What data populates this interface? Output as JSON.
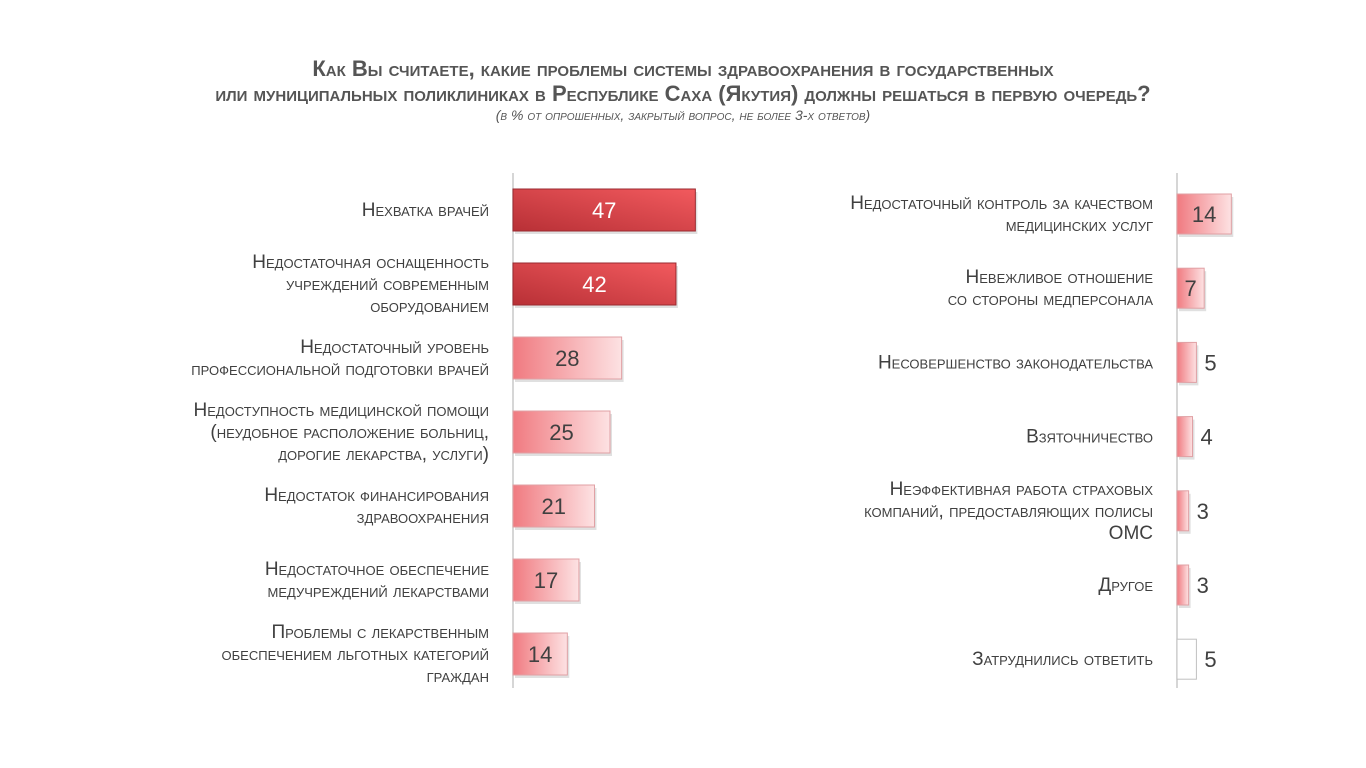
{
  "title": {
    "line1": "Как Вы считаете, какие проблемы системы здравоохранения в государственных",
    "line2": "или муниципальных поликлиниках в Республике Саха (Якутия) должны решаться в первую очередь?",
    "subtitle": "(в % от опрошенных, закрытый вопрос, не более 3-х ответов)"
  },
  "colors": {
    "top_bar_dark": "#b83036",
    "top_bar_light": "#f25a5e",
    "bar_dark": "#f07a80",
    "bar_light": "#fde2e3",
    "empty_bar": "#ffffff",
    "axis": "#c8c8c8",
    "text": "#404040"
  },
  "chart_data": [
    {
      "type": "bar",
      "orientation": "horizontal",
      "categories": [
        [
          "Нехватка врачей"
        ],
        [
          "Недостаточная оснащенность",
          "учреждений современным",
          "оборудованием"
        ],
        [
          "Недостаточный уровень",
          "профессиональной подготовки врачей"
        ],
        [
          "Недоступность медицинской помощи",
          "(неудобное расположение больниц,",
          "дорогие лекарства, услуги)"
        ],
        [
          "Недостаток финансирования",
          "здравоохранения"
        ],
        [
          "Недостаточное обеспечение",
          "медучреждений лекарствами"
        ],
        [
          "Проблемы с лекарственным",
          "обеспечением льготных категорий",
          "граждан"
        ]
      ],
      "values": [
        47,
        42,
        28,
        25,
        21,
        17,
        14
      ],
      "highlight": [
        true,
        true,
        false,
        false,
        false,
        false,
        false
      ],
      "value_position": [
        "inside",
        "inside",
        "inside",
        "inside",
        "inside",
        "inside",
        "inside"
      ],
      "xlim": [
        0,
        100
      ]
    },
    {
      "type": "bar",
      "orientation": "horizontal",
      "categories": [
        [
          "Недостаточный контроль за качеством",
          "медицинских услуг"
        ],
        [
          "Невежливое отношение",
          "со стороны медперсонала"
        ],
        [
          "Несовершенство законодательства"
        ],
        [
          "Взяточничество"
        ],
        [
          "Неэффективная работа страховых",
          "компаний, предоставляющих полисы",
          "ОМС"
        ],
        [
          "Другое"
        ],
        [
          "Затруднились ответить"
        ]
      ],
      "values": [
        14,
        7,
        5,
        4,
        3,
        3,
        5
      ],
      "highlight": [
        false,
        false,
        false,
        false,
        false,
        false,
        false
      ],
      "empty": [
        false,
        false,
        false,
        false,
        false,
        false,
        true
      ],
      "value_position": [
        "inside",
        "inside",
        "outside",
        "outside",
        "outside",
        "outside",
        "outside"
      ],
      "xlim": [
        0,
        100
      ]
    }
  ]
}
